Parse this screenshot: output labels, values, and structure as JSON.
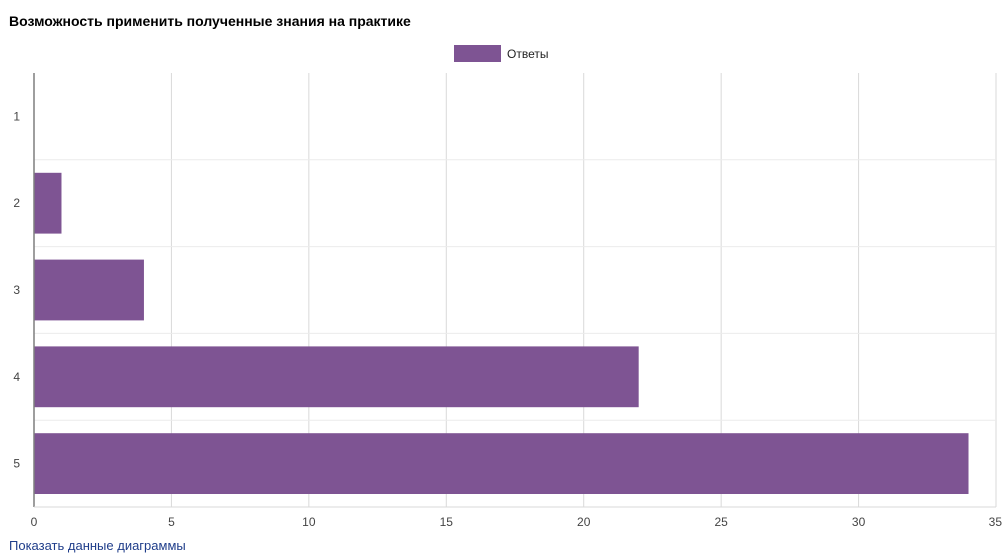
{
  "title": "Возможность применить полученные знания на практике",
  "show_data_link": "Показать данные диаграммы",
  "colors": {
    "bar": "#7e5493",
    "grid": "#d9d9d9",
    "axis": "#7f7f7f",
    "tick_text": "#444444",
    "link": "#1f3d8a"
  },
  "chart_data": {
    "type": "bar",
    "orientation": "horizontal",
    "title": "Возможность применить полученные знания на практике",
    "categories": [
      "1",
      "2",
      "3",
      "4",
      "5"
    ],
    "series": [
      {
        "name": "Ответы",
        "values": [
          0,
          1,
          4,
          22,
          34
        ]
      }
    ],
    "xlim": [
      0,
      35
    ],
    "x_ticks": [
      0,
      5,
      10,
      15,
      20,
      25,
      30,
      35
    ],
    "xlabel": "",
    "ylabel": "",
    "legend": "top-center",
    "grid": true
  }
}
